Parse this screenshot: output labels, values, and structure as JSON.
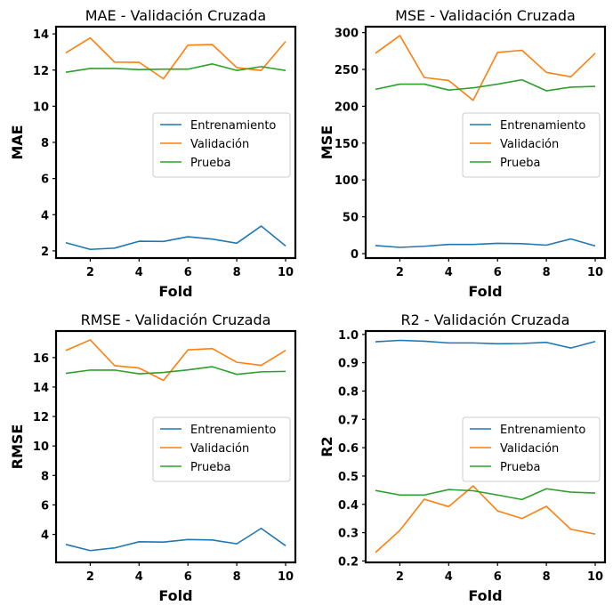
{
  "chart_data": [
    {
      "type": "line",
      "title": "MAE - Validación Cruzada",
      "xlabel": "Fold",
      "ylabel": "MAE",
      "x": [
        1,
        2,
        3,
        4,
        5,
        6,
        7,
        8,
        9,
        10
      ],
      "xticks": [
        "2",
        "4",
        "6",
        "8",
        "10"
      ],
      "xlim": [
        0.6,
        10.4
      ],
      "ylim": [
        1.6,
        14.4
      ],
      "yticks": [
        "2",
        "4",
        "6",
        "8",
        "10",
        "12",
        "14"
      ],
      "grid": false,
      "legend_position": "center-right",
      "series": [
        {
          "name": "Entrenamiento",
          "color": "#1f77b4",
          "values": [
            2.45,
            2.08,
            2.15,
            2.53,
            2.52,
            2.78,
            2.65,
            2.42,
            3.37,
            2.27
          ]
        },
        {
          "name": "Validación",
          "color": "#ff7f0e",
          "values": [
            12.95,
            13.78,
            12.44,
            12.43,
            11.52,
            13.38,
            13.41,
            12.14,
            11.98,
            13.58
          ]
        },
        {
          "name": "Prueba",
          "color": "#2ca02c",
          "values": [
            11.88,
            12.09,
            12.09,
            12.03,
            12.05,
            12.05,
            12.34,
            11.98,
            12.19,
            11.98
          ]
        }
      ]
    },
    {
      "type": "line",
      "title": "MSE - Validación Cruzada",
      "xlabel": "Fold",
      "ylabel": "MSE",
      "x": [
        1,
        2,
        3,
        4,
        5,
        6,
        7,
        8,
        9,
        10
      ],
      "xticks": [
        "2",
        "4",
        "6",
        "8",
        "10"
      ],
      "xlim": [
        0.6,
        10.4
      ],
      "ylim": [
        -6,
        308
      ],
      "yticks": [
        "0",
        "50",
        "100",
        "150",
        "200",
        "250",
        "300"
      ],
      "grid": false,
      "legend_position": "center-right",
      "series": [
        {
          "name": "Entrenamiento",
          "color": "#1f77b4",
          "values": [
            11,
            8.5,
            10,
            12.5,
            12.5,
            14,
            13.5,
            11.5,
            20,
            10.5
          ]
        },
        {
          "name": "Validación",
          "color": "#ff7f0e",
          "values": [
            272,
            296,
            239,
            235,
            208,
            273,
            276,
            246,
            240,
            272
          ]
        },
        {
          "name": "Prueba",
          "color": "#2ca02c",
          "values": [
            223,
            230,
            230,
            222,
            225,
            230,
            236,
            221,
            226,
            227
          ]
        }
      ]
    },
    {
      "type": "line",
      "title": "RMSE - Validación Cruzada",
      "xlabel": "Fold",
      "ylabel": "RMSE",
      "x": [
        1,
        2,
        3,
        4,
        5,
        6,
        7,
        8,
        9,
        10
      ],
      "xticks": [
        "2",
        "4",
        "6",
        "8",
        "10"
      ],
      "xlim": [
        0.6,
        10.4
      ],
      "ylim": [
        2.1,
        17.8
      ],
      "yticks": [
        "4",
        "6",
        "8",
        "10",
        "12",
        "14",
        "16"
      ],
      "grid": false,
      "legend_position": "center-right",
      "series": [
        {
          "name": "Entrenamiento",
          "color": "#1f77b4",
          "values": [
            3.32,
            2.9,
            3.08,
            3.5,
            3.48,
            3.65,
            3.62,
            3.36,
            4.41,
            3.23
          ]
        },
        {
          "name": "Validación",
          "color": "#ff7f0e",
          "values": [
            16.48,
            17.2,
            15.45,
            15.29,
            14.45,
            16.52,
            16.61,
            15.68,
            15.47,
            16.48
          ]
        },
        {
          "name": "Prueba",
          "color": "#2ca02c",
          "values": [
            14.93,
            15.15,
            15.15,
            14.9,
            14.99,
            15.16,
            15.38,
            14.86,
            15.03,
            15.06
          ]
        }
      ]
    },
    {
      "type": "line",
      "title": "R2 - Validación Cruzada",
      "xlabel": "Fold",
      "ylabel": "R2",
      "x": [
        1,
        2,
        3,
        4,
        5,
        6,
        7,
        8,
        9,
        10
      ],
      "xticks": [
        "2",
        "4",
        "6",
        "8",
        "10"
      ],
      "xlim": [
        0.6,
        10.4
      ],
      "ylim": [
        0.195,
        1.012
      ],
      "yticks": [
        "0.2",
        "0.3",
        "0.4",
        "0.5",
        "0.6",
        "0.7",
        "0.8",
        "0.9",
        "1.0"
      ],
      "grid": false,
      "legend_position": "center-right",
      "series": [
        {
          "name": "Entrenamiento",
          "color": "#1f77b4",
          "values": [
            0.974,
            0.979,
            0.976,
            0.97,
            0.97,
            0.967,
            0.968,
            0.972,
            0.952,
            0.975
          ]
        },
        {
          "name": "Validación",
          "color": "#ff7f0e",
          "values": [
            0.23,
            0.308,
            0.418,
            0.392,
            0.465,
            0.377,
            0.35,
            0.393,
            0.312,
            0.295
          ]
        },
        {
          "name": "Prueba",
          "color": "#2ca02c",
          "values": [
            0.449,
            0.433,
            0.433,
            0.452,
            0.448,
            0.433,
            0.417,
            0.455,
            0.443,
            0.44
          ]
        }
      ]
    }
  ]
}
